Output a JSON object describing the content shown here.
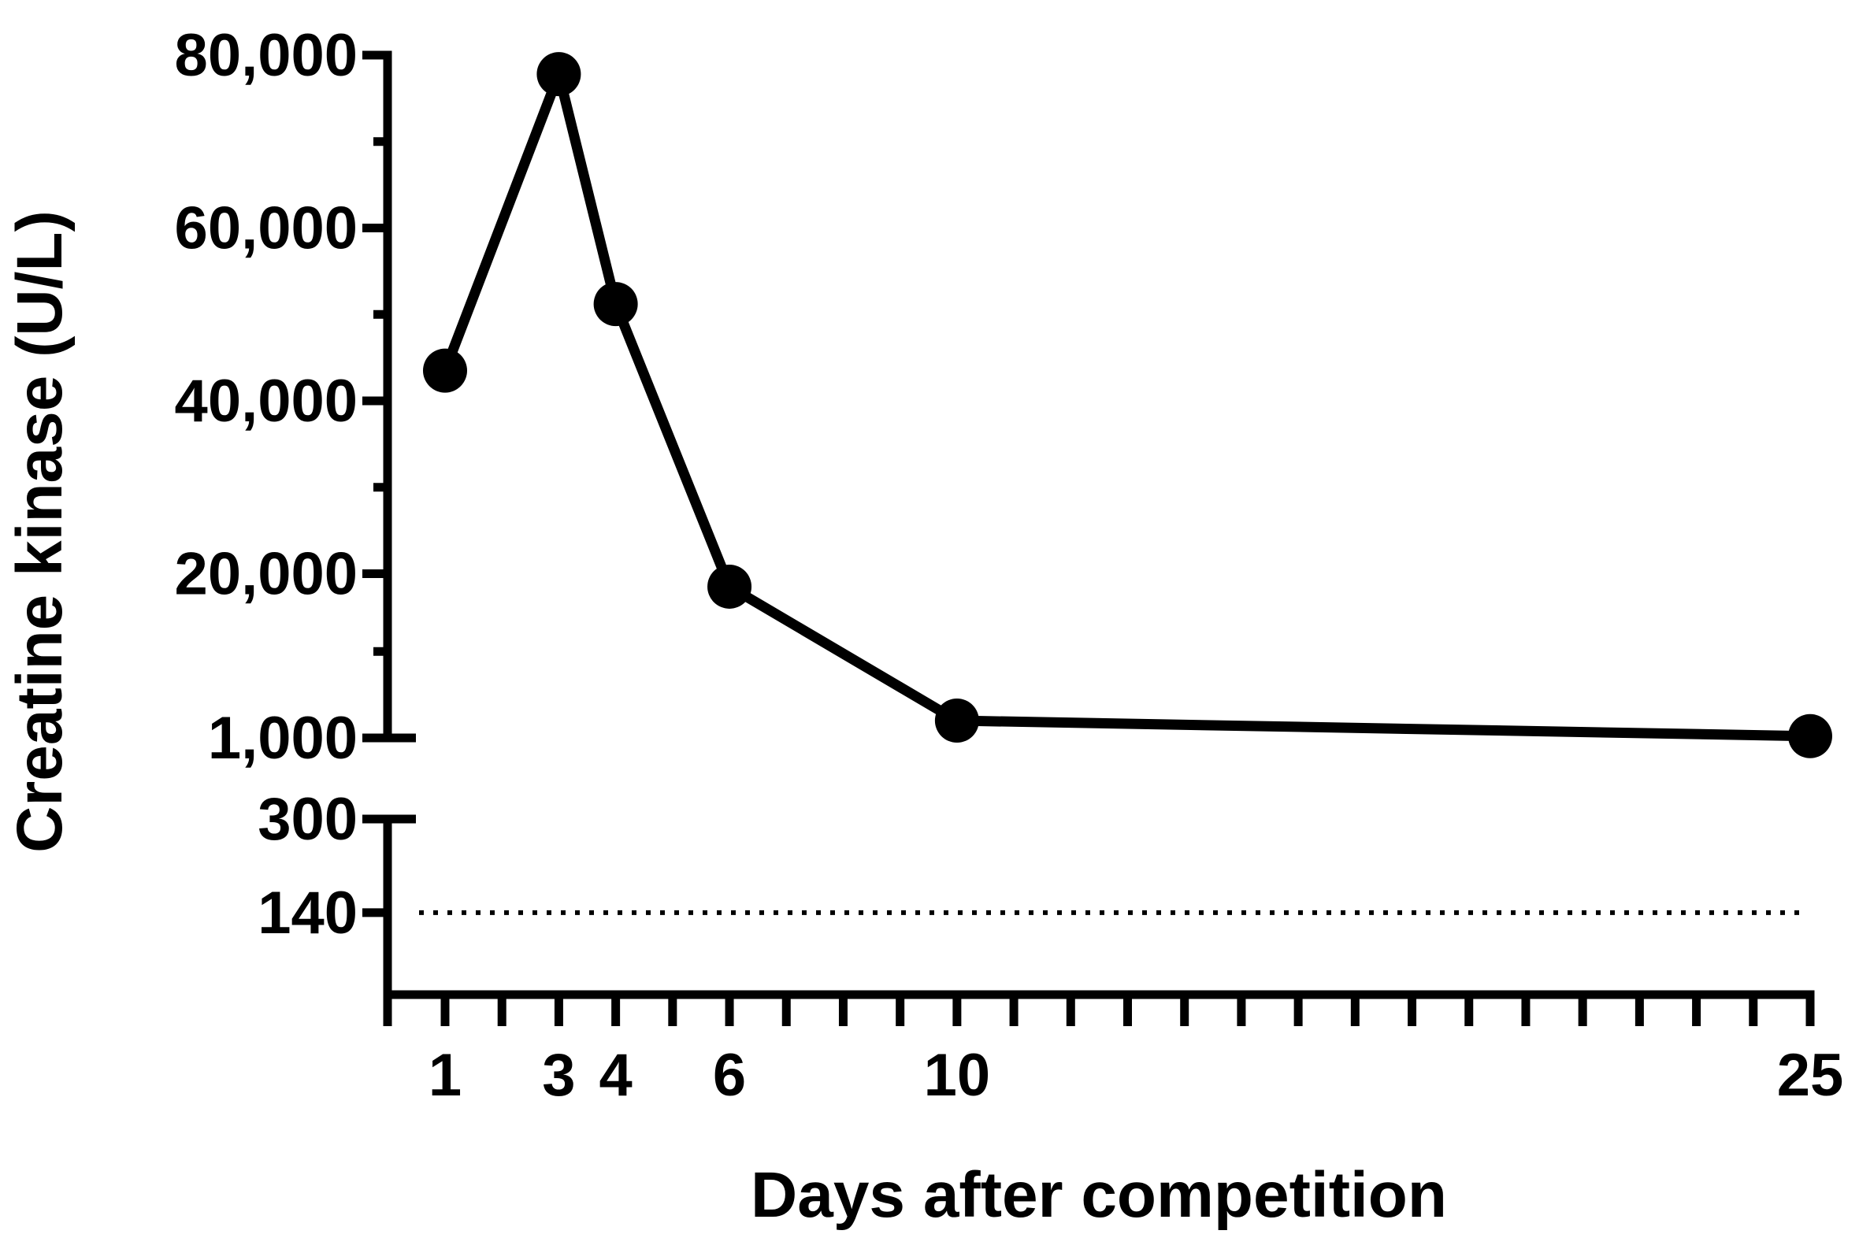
{
  "chart_data": {
    "type": "line",
    "xlabel": "Days after competition",
    "ylabel": "Creatine kinase (U/L)",
    "x_range": [
      0,
      25
    ],
    "x_ticks": [
      1,
      3,
      4,
      6,
      10,
      25
    ],
    "x_tick_labels": [
      "1",
      "3",
      "4",
      "6",
      "10",
      "25"
    ],
    "y_axis_break": true,
    "y_upper_range": [
      1000,
      80000
    ],
    "y_upper_ticks": [
      80000,
      60000,
      40000,
      20000,
      1000
    ],
    "y_upper_tick_labels": [
      "80,000",
      "60,000",
      "40,000",
      "20,000",
      "1,000"
    ],
    "y_lower_range": [
      0,
      300
    ],
    "y_lower_ticks": [
      300,
      140
    ],
    "y_lower_tick_labels": [
      "300",
      "140"
    ],
    "reference_line": {
      "y": 140,
      "style": "dotted"
    },
    "series": [
      {
        "x": [
          1,
          3,
          4,
          6,
          10,
          25
        ],
        "y": [
          43500,
          77800,
          51200,
          18500,
          3000,
          1200
        ]
      }
    ],
    "grid": false,
    "line_color": "#000000"
  }
}
